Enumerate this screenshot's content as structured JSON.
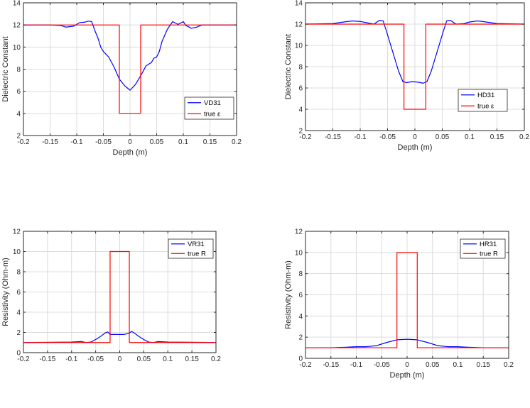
{
  "chart_data": [
    {
      "type": "line",
      "xlabel": "Depth (m)",
      "ylabel": "Dielectric Constant",
      "xlim": [
        -0.2,
        0.2
      ],
      "ylim": [
        2,
        14
      ],
      "xticks": [
        -0.2,
        -0.15,
        -0.1,
        -0.05,
        0,
        0.05,
        0.1,
        0.15,
        0.2
      ],
      "yticks": [
        2,
        4,
        6,
        8,
        10,
        12,
        14
      ],
      "xticklabels": [
        "-0.2",
        "-0.15",
        "-0.1",
        "-0.05",
        "0",
        "0.05",
        "0.1",
        "0.15",
        "0.2"
      ],
      "yticklabels": [
        "2",
        "4",
        "6",
        "8",
        "10",
        "12",
        "14"
      ],
      "grid": true,
      "legend_position": "bottom-right",
      "series": [
        {
          "name": "VD31",
          "color": "#0000ff",
          "x": [
            -0.2,
            -0.15,
            -0.13,
            -0.12,
            -0.105,
            -0.095,
            -0.085,
            -0.078,
            -0.072,
            -0.066,
            -0.06,
            -0.055,
            -0.05,
            -0.04,
            -0.03,
            -0.02,
            -0.01,
            0,
            0.01,
            0.02,
            0.03,
            0.04,
            0.045,
            0.05,
            0.055,
            0.06,
            0.07,
            0.08,
            0.09,
            0.1,
            0.105,
            0.115,
            0.125,
            0.135,
            0.15,
            0.2
          ],
          "y": [
            12.0,
            12.0,
            11.95,
            11.8,
            11.9,
            12.2,
            12.25,
            12.35,
            12.3,
            11.5,
            10.8,
            10.0,
            9.6,
            9.1,
            8.2,
            7.1,
            6.5,
            6.1,
            6.6,
            7.4,
            8.3,
            8.6,
            9.0,
            9.1,
            9.6,
            10.5,
            11.6,
            12.3,
            12.05,
            12.3,
            11.95,
            11.7,
            11.8,
            12.0,
            12.0,
            12.0
          ]
        },
        {
          "name": "true ε",
          "color": "#ff0000",
          "x": [
            -0.2,
            -0.02,
            -0.02,
            0.02,
            0.02,
            0.2
          ],
          "y": [
            12,
            12,
            4,
            4,
            12,
            12
          ]
        }
      ]
    },
    {
      "type": "line",
      "xlabel": "Depth (m)",
      "ylabel": "Dielectric Constant",
      "xlim": [
        -0.2,
        0.2
      ],
      "ylim": [
        2,
        14
      ],
      "xticks": [
        -0.2,
        -0.15,
        -0.1,
        -0.05,
        0,
        0.05,
        0.1,
        0.15,
        0.2
      ],
      "yticks": [
        2,
        4,
        6,
        8,
        10,
        12,
        14
      ],
      "xticklabels": [
        "-0.2",
        "-0.15",
        "-0.1",
        "-0.05",
        "0",
        "0.05",
        "0.1",
        "0.15",
        "0.2"
      ],
      "yticklabels": [
        "2",
        "4",
        "6",
        "8",
        "10",
        "12",
        "14"
      ],
      "grid": true,
      "legend_position": "bottom-right",
      "series": [
        {
          "name": "HD31",
          "color": "#0000ff",
          "x": [
            -0.2,
            -0.15,
            -0.13,
            -0.115,
            -0.1,
            -0.085,
            -0.075,
            -0.065,
            -0.058,
            -0.05,
            -0.04,
            -0.03,
            -0.022,
            -0.015,
            -0.005,
            0.005,
            0.015,
            0.022,
            0.03,
            0.04,
            0.05,
            0.058,
            0.065,
            0.075,
            0.09,
            0.1,
            0.115,
            0.13,
            0.15,
            0.2
          ],
          "y": [
            12.0,
            12.05,
            12.2,
            12.3,
            12.25,
            12.1,
            12.0,
            12.35,
            12.3,
            11.0,
            9.3,
            7.6,
            6.6,
            6.5,
            6.6,
            6.55,
            6.45,
            6.6,
            7.6,
            9.3,
            11.0,
            12.3,
            12.35,
            12.0,
            12.05,
            12.2,
            12.3,
            12.2,
            12.05,
            12.0
          ]
        },
        {
          "name": "true ε",
          "color": "#ff0000",
          "x": [
            -0.2,
            -0.02,
            -0.02,
            0.02,
            0.02,
            0.2
          ],
          "y": [
            12,
            12,
            4,
            4,
            12,
            12
          ]
        }
      ]
    },
    {
      "type": "line",
      "xlabel": "",
      "ylabel": "Resistivity (Ohm-m)",
      "xlim": [
        -0.2,
        0.2
      ],
      "ylim": [
        0,
        12
      ],
      "xticks": [
        -0.2,
        -0.15,
        -0.1,
        -0.05,
        0,
        0.05,
        0.1,
        0.15,
        0.2
      ],
      "yticks": [
        0,
        2,
        4,
        6,
        8,
        10,
        12
      ],
      "xticklabels": [
        "-0.2",
        "-0.15",
        "-0.1",
        "-0.05",
        "0",
        "0.05",
        "0.1",
        "0.15",
        "0.2"
      ],
      "yticklabels": [
        "0",
        "2",
        "4",
        "6",
        "8",
        "10",
        "12"
      ],
      "grid": true,
      "legend_position": "top-right",
      "series": [
        {
          "name": "VR31",
          "color": "#0000ff",
          "x": [
            -0.2,
            -0.1,
            -0.08,
            -0.07,
            -0.06,
            -0.05,
            -0.04,
            -0.03,
            -0.025,
            -0.02,
            -0.01,
            0,
            0.01,
            0.02,
            0.025,
            0.03,
            0.04,
            0.05,
            0.06,
            0.07,
            0.08,
            0.1,
            0.2
          ],
          "y": [
            1.0,
            1.05,
            1.1,
            1.0,
            1.05,
            1.3,
            1.6,
            1.95,
            2.05,
            1.8,
            1.8,
            1.8,
            1.8,
            1.95,
            2.1,
            1.95,
            1.6,
            1.3,
            1.05,
            1.0,
            1.1,
            1.05,
            1.0
          ]
        },
        {
          "name": "true R",
          "color": "#ff0000",
          "x": [
            -0.2,
            -0.02,
            -0.02,
            0.02,
            0.02,
            0.2
          ],
          "y": [
            1,
            1,
            10,
            10,
            1,
            1
          ]
        }
      ]
    },
    {
      "type": "line",
      "xlabel": "Depth (m)",
      "ylabel": "Resistivity (Ohm-m)",
      "xlim": [
        -0.2,
        0.2
      ],
      "ylim": [
        0,
        12
      ],
      "xticks": [
        -0.2,
        -0.15,
        -0.1,
        -0.05,
        0,
        0.05,
        0.1,
        0.15,
        0.2
      ],
      "yticks": [
        0,
        2,
        4,
        6,
        8,
        10,
        12
      ],
      "xticklabels": [
        "-0.2",
        "-0.15",
        "-0.1",
        "-0.05",
        "0",
        "0.05",
        "0.1",
        "0.15",
        "0.2"
      ],
      "yticklabels": [
        "0",
        "2",
        "4",
        "6",
        "8",
        "10",
        "12"
      ],
      "grid": true,
      "legend_position": "top-right",
      "series": [
        {
          "name": "HR31",
          "color": "#0000ff",
          "x": [
            -0.2,
            -0.15,
            -0.12,
            -0.1,
            -0.08,
            -0.06,
            -0.04,
            -0.02,
            0,
            0.02,
            0.04,
            0.06,
            0.08,
            0.1,
            0.12,
            0.15,
            0.2
          ],
          "y": [
            1.0,
            1.0,
            1.05,
            1.1,
            1.1,
            1.2,
            1.5,
            1.75,
            1.8,
            1.75,
            1.5,
            1.2,
            1.1,
            1.1,
            1.05,
            1.0,
            1.0
          ]
        },
        {
          "name": "true R",
          "color": "#ff0000",
          "x": [
            -0.2,
            -0.02,
            -0.02,
            0.02,
            0.02,
            0.2
          ],
          "y": [
            1,
            1,
            10,
            10,
            1,
            1
          ]
        }
      ]
    }
  ]
}
